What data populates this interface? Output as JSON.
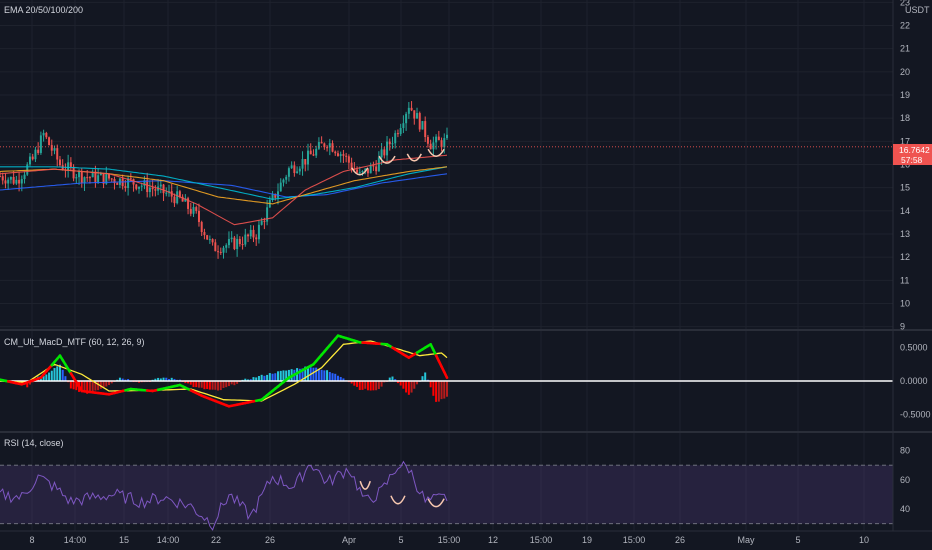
{
  "panes": {
    "main": {
      "title": "EMA 20/50/100/200",
      "currency": "USDT"
    },
    "macd": {
      "title": "CM_Ult_MacD_MTF (60, 12, 26, 9)"
    },
    "rsi": {
      "title": "RSI (14, close)"
    }
  },
  "price_tag": {
    "price": "16.7642",
    "countdown": "57:58"
  },
  "colors": {
    "background": "#131722",
    "up": "#26a69a",
    "down": "#ef5350",
    "ema20": "#ef5350",
    "ema50": "#f5a623",
    "ema100": "#00bcd4",
    "ema200": "#2962ff",
    "macd_up": "#00e600",
    "macd_down": "#ff0000",
    "signal": "#ffeb3b",
    "rsi": "#7e57c2",
    "annotation": "#f7c8b0"
  },
  "x_axis": {
    "labels": [
      "8",
      "14:00",
      "15",
      "14:00",
      "22",
      "26",
      "Apr",
      "5",
      "15:00",
      "12",
      "15:00",
      "19",
      "15:00",
      "26",
      "May",
      "5",
      "10"
    ]
  },
  "chart_data": [
    {
      "type": "candlestick",
      "name": "price",
      "y_ticks": [
        9,
        10,
        11,
        12,
        13,
        14,
        15,
        16,
        17,
        18,
        19,
        20,
        21,
        22,
        23
      ],
      "ylim": [
        8.9,
        23.1
      ],
      "last_price": 16.7642,
      "anchors": [
        [
          0,
          15.5
        ],
        [
          6,
          15.3
        ],
        [
          12,
          16.2
        ],
        [
          16,
          17.3
        ],
        [
          22,
          16.0
        ],
        [
          30,
          15.5
        ],
        [
          40,
          15.4
        ],
        [
          50,
          15.2
        ],
        [
          60,
          14.8
        ],
        [
          66,
          14.5
        ],
        [
          72,
          13.8
        ],
        [
          78,
          12.4
        ],
        [
          86,
          12.6
        ],
        [
          94,
          13.0
        ],
        [
          100,
          14.5
        ],
        [
          106,
          15.8
        ],
        [
          112,
          16.2
        ],
        [
          120,
          17.0
        ],
        [
          126,
          16.4
        ],
        [
          132,
          15.5
        ],
        [
          138,
          16.0
        ],
        [
          145,
          17.3
        ],
        [
          150,
          18.6
        ],
        [
          154,
          17.8
        ],
        [
          158,
          16.9
        ],
        [
          164,
          17.0
        ]
      ],
      "ema20": [
        [
          0,
          15.6
        ],
        [
          20,
          15.8
        ],
        [
          40,
          15.6
        ],
        [
          60,
          14.9
        ],
        [
          72,
          14.3
        ],
        [
          86,
          13.4
        ],
        [
          100,
          13.7
        ],
        [
          112,
          14.9
        ],
        [
          126,
          15.7
        ],
        [
          145,
          16.2
        ],
        [
          164,
          16.4
        ]
      ],
      "ema50": [
        [
          0,
          15.7
        ],
        [
          20,
          15.8
        ],
        [
          40,
          15.6
        ],
        [
          60,
          15.3
        ],
        [
          80,
          14.6
        ],
        [
          100,
          14.3
        ],
        [
          115,
          14.8
        ],
        [
          130,
          15.3
        ],
        [
          150,
          15.7
        ],
        [
          164,
          15.9
        ]
      ],
      "ema100": [
        [
          0,
          15.9
        ],
        [
          20,
          15.9
        ],
        [
          40,
          15.8
        ],
        [
          60,
          15.5
        ],
        [
          80,
          15.0
        ],
        [
          100,
          14.5
        ],
        [
          115,
          14.7
        ],
        [
          130,
          15.0
        ],
        [
          150,
          15.6
        ],
        [
          164,
          15.9
        ]
      ],
      "ema200": [
        [
          0,
          14.9
        ],
        [
          30,
          15.2
        ],
        [
          60,
          15.3
        ],
        [
          85,
          15.1
        ],
        [
          105,
          14.6
        ],
        [
          120,
          14.7
        ],
        [
          140,
          15.2
        ],
        [
          164,
          15.6
        ]
      ]
    },
    {
      "type": "line",
      "name": "macd",
      "y_ticks": [
        0.5,
        0.0,
        -0.5
      ],
      "y_tick_labels": [
        "0.5000",
        "0.0000",
        "-0.5000"
      ],
      "ylim": [
        -0.75,
        0.75
      ],
      "macd": [
        [
          0,
          0.02
        ],
        [
          8,
          -0.05
        ],
        [
          15,
          0.05
        ],
        [
          22,
          0.38
        ],
        [
          30,
          -0.15
        ],
        [
          40,
          -0.2
        ],
        [
          48,
          -0.12
        ],
        [
          56,
          -0.15
        ],
        [
          66,
          -0.06
        ],
        [
          74,
          -0.22
        ],
        [
          84,
          -0.38
        ],
        [
          96,
          -0.28
        ],
        [
          106,
          0.05
        ],
        [
          115,
          0.25
        ],
        [
          124,
          0.68
        ],
        [
          132,
          0.58
        ],
        [
          142,
          0.55
        ],
        [
          150,
          0.35
        ],
        [
          158,
          0.55
        ],
        [
          164,
          0.05
        ]
      ],
      "signal": [
        [
          0,
          0.0
        ],
        [
          10,
          -0.02
        ],
        [
          20,
          0.25
        ],
        [
          30,
          0.1
        ],
        [
          40,
          -0.15
        ],
        [
          56,
          -0.14
        ],
        [
          70,
          -0.12
        ],
        [
          82,
          -0.28
        ],
        [
          96,
          -0.3
        ],
        [
          108,
          -0.05
        ],
        [
          118,
          0.2
        ],
        [
          126,
          0.55
        ],
        [
          136,
          0.6
        ],
        [
          146,
          0.48
        ],
        [
          154,
          0.38
        ],
        [
          162,
          0.42
        ],
        [
          164,
          0.35
        ]
      ],
      "histogram": [
        [
          0,
          0.02
        ],
        [
          6,
          -0.04
        ],
        [
          10,
          -0.08
        ],
        [
          14,
          0.05
        ],
        [
          18,
          0.12
        ],
        [
          22,
          0.25
        ],
        [
          26,
          -0.12
        ],
        [
          32,
          -0.18
        ],
        [
          38,
          -0.1
        ],
        [
          44,
          0.05
        ],
        [
          52,
          -0.02
        ],
        [
          60,
          0.05
        ],
        [
          66,
          0.02
        ],
        [
          72,
          -0.1
        ],
        [
          80,
          -0.15
        ],
        [
          90,
          0.02
        ],
        [
          100,
          0.12
        ],
        [
          108,
          0.18
        ],
        [
          114,
          0.22
        ],
        [
          120,
          0.15
        ],
        [
          126,
          0.05
        ],
        [
          132,
          -0.12
        ],
        [
          138,
          -0.15
        ],
        [
          144,
          0.08
        ],
        [
          150,
          -0.22
        ],
        [
          156,
          0.12
        ],
        [
          160,
          -0.32
        ],
        [
          164,
          -0.25
        ]
      ]
    },
    {
      "type": "line",
      "name": "rsi",
      "y_ticks": [
        80,
        60,
        40
      ],
      "ylim": [
        25,
        92
      ],
      "bands": [
        70,
        30
      ],
      "values": [
        [
          0,
          50
        ],
        [
          8,
          48
        ],
        [
          14,
          62
        ],
        [
          20,
          55
        ],
        [
          26,
          45
        ],
        [
          34,
          48
        ],
        [
          42,
          50
        ],
        [
          52,
          45
        ],
        [
          60,
          48
        ],
        [
          70,
          42
        ],
        [
          78,
          30
        ],
        [
          84,
          50
        ],
        [
          92,
          35
        ],
        [
          100,
          62
        ],
        [
          108,
          55
        ],
        [
          114,
          72
        ],
        [
          120,
          58
        ],
        [
          128,
          68
        ],
        [
          134,
          45
        ],
        [
          140,
          52
        ],
        [
          146,
          70
        ],
        [
          150,
          68
        ],
        [
          156,
          45
        ],
        [
          164,
          48
        ]
      ]
    }
  ]
}
